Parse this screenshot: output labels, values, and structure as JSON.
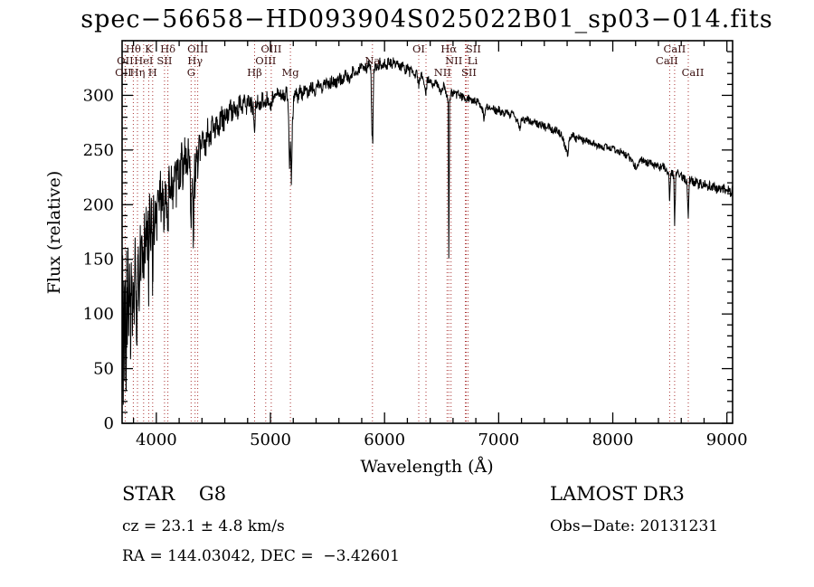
{
  "title": "spec−56658−HD093904S025022B01_sp03−014.fits",
  "axes": {
    "xlabel": "Wavelength (Å)",
    "ylabel": "Flux (relative)",
    "x_ticks": [
      4000,
      5000,
      6000,
      7000,
      8000,
      9000
    ],
    "y_ticks": [
      0,
      50,
      100,
      150,
      200,
      250,
      300
    ]
  },
  "annotations": {
    "class_label": "STAR    G8",
    "survey": "LAMOST DR3",
    "cz": "cz = 23.1 ± 4.8 km/s",
    "obs_date": "Obs−Date: 20131231",
    "radec": "RA = 144.03042, DEC =  −3.42601"
  },
  "colors": {
    "spectrum": "#000000",
    "line_marker": "#aa3333",
    "line_label": "#3a1010",
    "axis": "#000000"
  },
  "chart_data": {
    "type": "line",
    "title": "spec−56658−HD093904S025022B01_sp03−014.fits",
    "xlabel": "Wavelength (Å)",
    "ylabel": "Flux (relative)",
    "xlim": [
      3700,
      9050
    ],
    "ylim": [
      0,
      350
    ],
    "x_ticks": [
      4000,
      5000,
      6000,
      7000,
      8000,
      9000
    ],
    "y_ticks": [
      0,
      50,
      100,
      150,
      200,
      250,
      300
    ],
    "legend": "none",
    "grid": false,
    "envelope_points": [
      [
        3700,
        40
      ],
      [
        3705,
        120
      ],
      [
        3710,
        35
      ],
      [
        3716,
        140
      ],
      [
        3722,
        60
      ],
      [
        3728,
        110
      ],
      [
        3734,
        8
      ],
      [
        3740,
        125
      ],
      [
        3746,
        70
      ],
      [
        3752,
        135
      ],
      [
        3758,
        90
      ],
      [
        3766,
        150
      ],
      [
        3774,
        80
      ],
      [
        3782,
        155
      ],
      [
        3790,
        110
      ],
      [
        3798,
        140
      ],
      [
        3806,
        95
      ],
      [
        3814,
        160
      ],
      [
        3822,
        120
      ],
      [
        3830,
        90
      ],
      [
        3835,
        130
      ],
      [
        3842,
        165
      ],
      [
        3850,
        110
      ],
      [
        3858,
        170
      ],
      [
        3866,
        135
      ],
      [
        3874,
        175
      ],
      [
        3882,
        145
      ],
      [
        3889,
        120
      ],
      [
        3896,
        175
      ],
      [
        3904,
        150
      ],
      [
        3912,
        180
      ],
      [
        3920,
        155
      ],
      [
        3926,
        185
      ],
      [
        3933,
        125
      ],
      [
        3940,
        185
      ],
      [
        3948,
        160
      ],
      [
        3956,
        190
      ],
      [
        3962,
        170
      ],
      [
        3968,
        135
      ],
      [
        3975,
        190
      ],
      [
        3985,
        165
      ],
      [
        3995,
        200
      ],
      [
        4005,
        180
      ],
      [
        4015,
        210
      ],
      [
        4025,
        185
      ],
      [
        4035,
        215
      ],
      [
        4045,
        190
      ],
      [
        4055,
        220
      ],
      [
        4065,
        195
      ],
      [
        4072,
        180
      ],
      [
        4080,
        220
      ],
      [
        4090,
        200
      ],
      [
        4101,
        170
      ],
      [
        4110,
        225
      ],
      [
        4120,
        205
      ],
      [
        4130,
        230
      ],
      [
        4145,
        210
      ],
      [
        4160,
        235
      ],
      [
        4175,
        215
      ],
      [
        4190,
        240
      ],
      [
        4205,
        220
      ],
      [
        4220,
        245
      ],
      [
        4235,
        225
      ],
      [
        4250,
        248
      ],
      [
        4265,
        235
      ],
      [
        4280,
        250
      ],
      [
        4295,
        230
      ],
      [
        4305,
        185
      ],
      [
        4315,
        235
      ],
      [
        4325,
        165
      ],
      [
        4335,
        240
      ],
      [
        4340,
        215
      ],
      [
        4352,
        250
      ],
      [
        4363,
        235
      ],
      [
        4375,
        258
      ],
      [
        4390,
        248
      ],
      [
        4410,
        263
      ],
      [
        4430,
        253
      ],
      [
        4450,
        268
      ],
      [
        4470,
        260
      ],
      [
        4490,
        273
      ],
      [
        4510,
        266
      ],
      [
        4530,
        278
      ],
      [
        4550,
        270
      ],
      [
        4570,
        281
      ],
      [
        4590,
        274
      ],
      [
        4610,
        285
      ],
      [
        4630,
        278
      ],
      [
        4650,
        288
      ],
      [
        4670,
        282
      ],
      [
        4690,
        291
      ],
      [
        4710,
        285
      ],
      [
        4730,
        293
      ],
      [
        4750,
        288
      ],
      [
        4770,
        295
      ],
      [
        4790,
        290
      ],
      [
        4810,
        296
      ],
      [
        4830,
        292
      ],
      [
        4850,
        288
      ],
      [
        4861,
        266
      ],
      [
        4872,
        293
      ],
      [
        4890,
        296
      ],
      [
        4910,
        292
      ],
      [
        4930,
        298
      ],
      [
        4950,
        294
      ],
      [
        4959,
        288
      ],
      [
        4970,
        298
      ],
      [
        4990,
        294
      ],
      [
        5007,
        292
      ],
      [
        5020,
        300
      ],
      [
        5040,
        296
      ],
      [
        5060,
        302
      ],
      [
        5080,
        298
      ],
      [
        5100,
        303
      ],
      [
        5120,
        298
      ],
      [
        5140,
        304
      ],
      [
        5155,
        293
      ],
      [
        5167,
        238
      ],
      [
        5175,
        258
      ],
      [
        5183,
        216
      ],
      [
        5192,
        273
      ],
      [
        5205,
        298
      ],
      [
        5220,
        303
      ],
      [
        5240,
        298
      ],
      [
        5260,
        305
      ],
      [
        5280,
        300
      ],
      [
        5300,
        306
      ],
      [
        5330,
        302
      ],
      [
        5360,
        308
      ],
      [
        5390,
        304
      ],
      [
        5420,
        310
      ],
      [
        5450,
        306
      ],
      [
        5480,
        312
      ],
      [
        5510,
        308
      ],
      [
        5540,
        314
      ],
      [
        5570,
        310
      ],
      [
        5600,
        316
      ],
      [
        5630,
        313
      ],
      [
        5660,
        319
      ],
      [
        5690,
        316
      ],
      [
        5720,
        322
      ],
      [
        5750,
        318
      ],
      [
        5780,
        325
      ],
      [
        5810,
        328
      ],
      [
        5840,
        324
      ],
      [
        5865,
        329
      ],
      [
        5880,
        323
      ],
      [
        5889,
        266
      ],
      [
        5897,
        260
      ],
      [
        5906,
        323
      ],
      [
        5920,
        328
      ],
      [
        5940,
        324
      ],
      [
        5960,
        330
      ],
      [
        5980,
        326
      ],
      [
        6000,
        331
      ],
      [
        6020,
        327
      ],
      [
        6040,
        332
      ],
      [
        6060,
        328
      ],
      [
        6080,
        331
      ],
      [
        6100,
        327
      ],
      [
        6120,
        329
      ],
      [
        6140,
        325
      ],
      [
        6160,
        327
      ],
      [
        6180,
        323
      ],
      [
        6200,
        325
      ],
      [
        6220,
        321
      ],
      [
        6240,
        323
      ],
      [
        6260,
        319
      ],
      [
        6280,
        320
      ],
      [
        6300,
        310
      ],
      [
        6320,
        318
      ],
      [
        6340,
        315
      ],
      [
        6355,
        308
      ],
      [
        6363,
        303
      ],
      [
        6375,
        315
      ],
      [
        6400,
        313
      ],
      [
        6425,
        310
      ],
      [
        6450,
        312
      ],
      [
        6475,
        308
      ],
      [
        6495,
        303
      ],
      [
        6515,
        309
      ],
      [
        6535,
        305
      ],
      [
        6550,
        298
      ],
      [
        6557,
        293
      ],
      [
        6563,
        148
      ],
      [
        6570,
        293
      ],
      [
        6580,
        301
      ],
      [
        6600,
        303
      ],
      [
        6625,
        300
      ],
      [
        6650,
        302
      ],
      [
        6675,
        298
      ],
      [
        6700,
        300
      ],
      [
        6720,
        296
      ],
      [
        6740,
        298
      ],
      [
        6760,
        295
      ],
      [
        6780,
        296
      ],
      [
        6800,
        293
      ],
      [
        6820,
        294
      ],
      [
        6840,
        290
      ],
      [
        6860,
        286
      ],
      [
        6870,
        278
      ],
      [
        6885,
        288
      ],
      [
        6900,
        290
      ],
      [
        6925,
        287
      ],
      [
        6950,
        289
      ],
      [
        6975,
        285
      ],
      [
        7000,
        287
      ],
      [
        7030,
        283
      ],
      [
        7060,
        285
      ],
      [
        7090,
        281
      ],
      [
        7120,
        283
      ],
      [
        7150,
        279
      ],
      [
        7170,
        274
      ],
      [
        7185,
        270
      ],
      [
        7200,
        278
      ],
      [
        7230,
        276
      ],
      [
        7260,
        278
      ],
      [
        7290,
        274
      ],
      [
        7320,
        276
      ],
      [
        7350,
        272
      ],
      [
        7380,
        274
      ],
      [
        7410,
        270
      ],
      [
        7440,
        271
      ],
      [
        7470,
        268
      ],
      [
        7500,
        269
      ],
      [
        7530,
        266
      ],
      [
        7560,
        262
      ],
      [
        7590,
        250
      ],
      [
        7605,
        246
      ],
      [
        7620,
        260
      ],
      [
        7650,
        263
      ],
      [
        7680,
        260
      ],
      [
        7710,
        262
      ],
      [
        7740,
        258
      ],
      [
        7770,
        260
      ],
      [
        7800,
        256
      ],
      [
        7830,
        257
      ],
      [
        7860,
        254
      ],
      [
        7890,
        255
      ],
      [
        7920,
        252
      ],
      [
        7950,
        253
      ],
      [
        7980,
        250
      ],
      [
        8010,
        251
      ],
      [
        8040,
        248
      ],
      [
        8070,
        249
      ],
      [
        8100,
        246
      ],
      [
        8130,
        244
      ],
      [
        8160,
        241
      ],
      [
        8190,
        236
      ],
      [
        8210,
        234
      ],
      [
        8230,
        240
      ],
      [
        8260,
        241
      ],
      [
        8290,
        238
      ],
      [
        8320,
        239
      ],
      [
        8350,
        236
      ],
      [
        8380,
        237
      ],
      [
        8410,
        234
      ],
      [
        8440,
        235
      ],
      [
        8470,
        232
      ],
      [
        8490,
        228
      ],
      [
        8498,
        200
      ],
      [
        8508,
        230
      ],
      [
        8525,
        228
      ],
      [
        8535,
        226
      ],
      [
        8542,
        180
      ],
      [
        8552,
        227
      ],
      [
        8570,
        228
      ],
      [
        8590,
        225
      ],
      [
        8610,
        226
      ],
      [
        8630,
        223
      ],
      [
        8650,
        220
      ],
      [
        8662,
        190
      ],
      [
        8672,
        222
      ],
      [
        8690,
        223
      ],
      [
        8710,
        220
      ],
      [
        8730,
        221
      ],
      [
        8750,
        218
      ],
      [
        8770,
        220
      ],
      [
        8790,
        217
      ],
      [
        8810,
        219
      ],
      [
        8830,
        216
      ],
      [
        8850,
        218
      ],
      [
        8870,
        215
      ],
      [
        8890,
        217
      ],
      [
        8910,
        214
      ],
      [
        8930,
        216
      ],
      [
        8950,
        213
      ],
      [
        8970,
        215
      ],
      [
        8990,
        212
      ],
      [
        9010,
        214
      ],
      [
        9030,
        211
      ],
      [
        9050,
        213
      ]
    ],
    "noise_amplitude_points": [
      [
        3700,
        34
      ],
      [
        3800,
        32
      ],
      [
        3900,
        28
      ],
      [
        4000,
        24
      ],
      [
        4100,
        21
      ],
      [
        4200,
        18
      ],
      [
        4300,
        16
      ],
      [
        4400,
        13
      ],
      [
        4600,
        10
      ],
      [
        4800,
        8
      ],
      [
        5000,
        7
      ],
      [
        5200,
        6
      ],
      [
        5500,
        5.5
      ],
      [
        5800,
        5
      ],
      [
        6200,
        4.5
      ],
      [
        6600,
        4
      ],
      [
        7000,
        3.5
      ],
      [
        7500,
        3.5
      ],
      [
        8000,
        3.5
      ],
      [
        8500,
        4
      ],
      [
        9050,
        4
      ]
    ],
    "spectral_lines": [
      {
        "label": "Hθ",
        "wavelength": 3798,
        "row": 1
      },
      {
        "label": "K",
        "wavelength": 3933,
        "row": 1
      },
      {
        "label": "Hδ",
        "wavelength": 4101,
        "row": 1
      },
      {
        "label": "OIII",
        "wavelength": 4363,
        "row": 1
      },
      {
        "label": "OIII",
        "wavelength": 5007,
        "row": 1
      },
      {
        "label": "OI",
        "wavelength": 6300,
        "row": 1
      },
      {
        "label": "Hα",
        "wavelength": 6563,
        "row": 1
      },
      {
        "label": "SII",
        "wavelength": 6731,
        "row": 1,
        "dx": 6
      },
      {
        "label": "CaII",
        "wavelength": 8542,
        "row": 1
      },
      {
        "label": "OII",
        "wavelength": 3727,
        "row": 2
      },
      {
        "label": "HeI",
        "wavelength": 3889,
        "row": 2
      },
      {
        "label": "SII",
        "wavelength": 4072,
        "row": 2
      },
      {
        "label": "Hγ",
        "wavelength": 4340,
        "row": 2
      },
      {
        "label": "OIII",
        "wavelength": 4959,
        "row": 2
      },
      {
        "label": "Na",
        "wavelength": 5894,
        "row": 2
      },
      {
        "label": "NII",
        "wavelength": 6583,
        "row": 2,
        "dx": 3
      },
      {
        "label": "Li",
        "wavelength": 6708,
        "row": 2,
        "dx": 8
      },
      {
        "label": "CaII",
        "wavelength": 8498,
        "row": 2,
        "dx": -3
      },
      {
        "label": "OII",
        "wavelength": 3727,
        "row": 3,
        "dx": -2
      },
      {
        "label": "Hη",
        "wavelength": 3835,
        "row": 3
      },
      {
        "label": "H",
        "wavelength": 3968,
        "row": 3
      },
      {
        "label": "G",
        "wavelength": 4305,
        "row": 3
      },
      {
        "label": "Hβ",
        "wavelength": 4861,
        "row": 3
      },
      {
        "label": "Mg",
        "wavelength": 5175,
        "row": 3
      },
      {
        "label": "NII",
        "wavelength": 6548,
        "row": 3,
        "dx": -5
      },
      {
        "label": "SII",
        "wavelength": 6716,
        "row": 3,
        "dx": 3
      },
      {
        "label": "CaII",
        "wavelength": 8662,
        "row": 3,
        "dx": 5
      },
      {
        "label": "",
        "wavelength": 6363,
        "row": 0
      }
    ]
  }
}
